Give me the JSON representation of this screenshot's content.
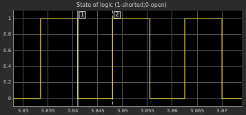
{
  "chart_data": {
    "type": "line",
    "title": "State of logic (1-shorted;0-open)",
    "x": [
      3.828,
      3.8335,
      3.841,
      3.848,
      3.8555,
      3.8625,
      3.87,
      3.874
    ],
    "series": [
      {
        "name": "State of logic",
        "color": "#f0e040",
        "line_style": "stepped",
        "values": [
          0,
          1,
          0,
          1,
          0,
          1,
          0,
          0
        ]
      }
    ],
    "xlim": [
      3.828,
      3.874
    ],
    "xticks": [
      3.83,
      3.835,
      3.84,
      3.845,
      3.85,
      3.855,
      3.86,
      3.865,
      3.87
    ],
    "ylim": [
      -0.1,
      1.1
    ],
    "yticks": [
      0,
      0.2,
      0.4,
      0.6,
      0.8,
      1
    ],
    "grid": true,
    "legend": false,
    "annotations": [
      {
        "text": "1",
        "x": 3.841,
        "line_style": "solid"
      },
      {
        "text": "2",
        "x": 3.848,
        "line_style": "dashed"
      }
    ]
  }
}
